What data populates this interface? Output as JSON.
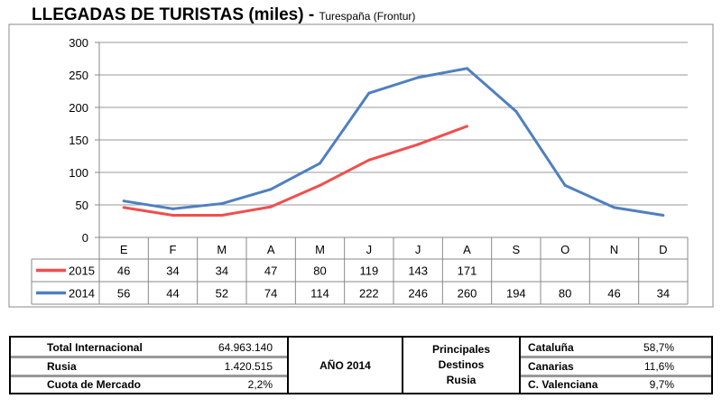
{
  "title": "LLEGADAS DE TURISTAS (miles)",
  "subtitle": "Turespaña (Frontur)",
  "chart_data": {
    "type": "line",
    "title": "LLEGADAS DE TURISTAS (miles)",
    "categories": [
      "E",
      "F",
      "M",
      "A",
      "M",
      "J",
      "J",
      "A",
      "S",
      "O",
      "N",
      "D"
    ],
    "ylim": [
      0,
      300
    ],
    "yticks": [
      0,
      50,
      100,
      150,
      200,
      250,
      300
    ],
    "grid": true,
    "legend": "data-table",
    "series": [
      {
        "name": "2015",
        "color": "#f04e4e",
        "values": [
          46,
          34,
          34,
          47,
          80,
          119,
          143,
          171,
          null,
          null,
          null,
          null
        ]
      },
      {
        "name": "2014",
        "color": "#4f7fc0",
        "values": [
          56,
          44,
          52,
          74,
          114,
          222,
          246,
          260,
          194,
          80,
          46,
          34
        ]
      }
    ]
  },
  "summary": {
    "left": [
      {
        "label": "Total Internacional",
        "value": "64.963.140"
      },
      {
        "label": "Rusia",
        "value": "1.420.515"
      },
      {
        "label": "Cuota de Mercado",
        "value": "2,2%"
      }
    ],
    "year": "AÑO 2014",
    "dest_title": [
      "Principales",
      "Destinos",
      "Rusia"
    ],
    "destinations": [
      {
        "label": "Cataluña",
        "value": "58,7%"
      },
      {
        "label": "Canarias",
        "value": "11,6%"
      },
      {
        "label": "C. Valenciana",
        "value": "9,7%"
      }
    ]
  }
}
